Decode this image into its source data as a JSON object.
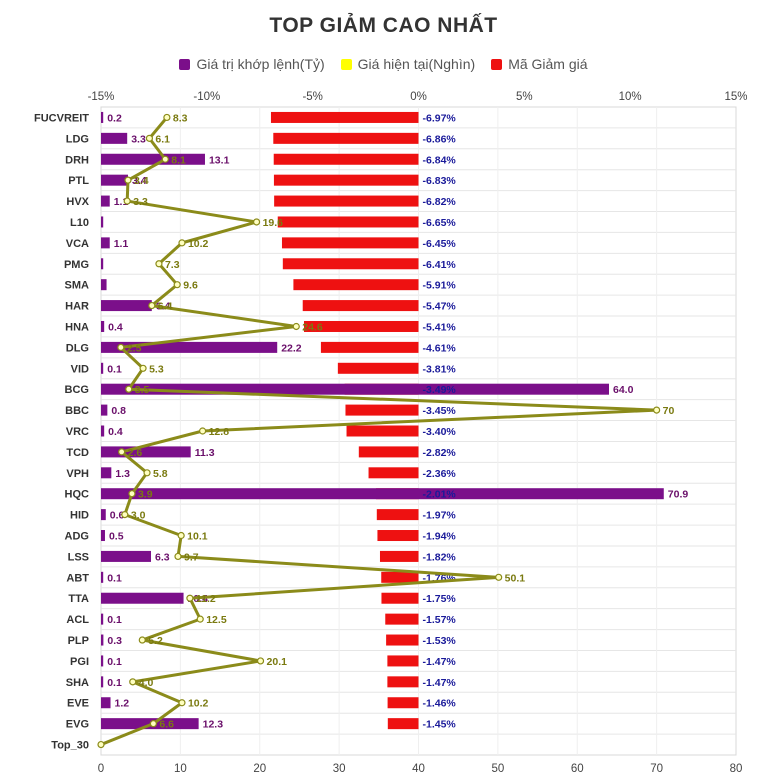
{
  "chart_data": {
    "type": "bar",
    "title": "TOP GIẢM CAO NHẤT",
    "categories": [
      "FUCVREIT",
      "LDG",
      "DRH",
      "PTL",
      "HVX",
      "L10",
      "VCA",
      "PMG",
      "SMA",
      "HAR",
      "HNA",
      "DLG",
      "VID",
      "BCG",
      "BBC",
      "VRC",
      "TCD",
      "VPH",
      "HQC",
      "HID",
      "ADG",
      "LSS",
      "ABT",
      "TTA",
      "ACL",
      "PLP",
      "PGI",
      "SHA",
      "EVE",
      "EVG",
      "Top_30"
    ],
    "series": [
      {
        "name": "Giá trị khớp lệnh(Tỷ)",
        "color": "#7b0f8a",
        "kind": "bar",
        "axis": "bottom",
        "values": [
          0.2,
          3.3,
          13.1,
          3.4,
          1.1,
          0.0,
          1.1,
          0.1,
          0.7,
          6.4,
          0.4,
          22.2,
          0.1,
          64.0,
          0.8,
          0.4,
          11.3,
          1.3,
          70.9,
          0.6,
          0.5,
          6.3,
          0.1,
          10.4,
          0.1,
          0.3,
          0.1,
          0.1,
          1.2,
          12.3,
          null
        ],
        "labels": [
          "0.2",
          "3.3",
          "13.1",
          "3.4",
          "1.1",
          "",
          "1.1",
          "",
          "",
          "6.4",
          "0.4",
          "22.2",
          "0.1",
          "64.0",
          "0.8",
          "0.4",
          "11.3",
          "1.3",
          "70.9",
          "0.6",
          "0.5",
          "6.3",
          "0.1",
          "10.4",
          "0.1",
          "0.3",
          "0.1",
          "0.1",
          "1.2",
          "12.3",
          ""
        ]
      },
      {
        "name": "Giá hiện tại(Nghìn)",
        "color": "#ffff00",
        "line_color": "#8b8b1a",
        "kind": "line",
        "axis": "bottom",
        "values": [
          8.3,
          6.1,
          8.1,
          3.4,
          3.3,
          19.6,
          10.2,
          7.3,
          9.6,
          6.4,
          24.6,
          2.5,
          5.3,
          3.5,
          70,
          12.8,
          2.6,
          5.8,
          3.9,
          3.0,
          10.1,
          9.7,
          50.1,
          11.2,
          12.5,
          5.2,
          20.1,
          4.0,
          10.2,
          6.6,
          0
        ],
        "labels": [
          "8.3",
          "6.1",
          "8.1",
          "3.4",
          "3.3",
          "19.6",
          "10.2",
          "7.3",
          "9.6",
          "6.4",
          "24.6",
          "2.5",
          "5.3",
          "3.5",
          "70",
          "12.8",
          "2.6",
          "5.8",
          "3.9",
          "3.0",
          "10.1",
          "9.7",
          "50.1",
          "11.2",
          "12.5",
          "5.2",
          "20.1",
          "4.0",
          "10.2",
          "6.6",
          ""
        ]
      },
      {
        "name": "Mã Giảm giá",
        "color": "#ee1111",
        "kind": "bar",
        "axis": "top",
        "values": [
          -6.97,
          -6.86,
          -6.84,
          -6.83,
          -6.82,
          -6.65,
          -6.45,
          -6.41,
          -5.91,
          -5.47,
          -5.41,
          -4.61,
          -3.81,
          -3.49,
          -3.45,
          -3.4,
          -2.82,
          -2.36,
          -2.01,
          -1.97,
          -1.94,
          -1.82,
          -1.76,
          -1.75,
          -1.57,
          -1.53,
          -1.47,
          -1.47,
          -1.46,
          -1.45,
          null
        ],
        "labels": [
          "-6.97%",
          "-6.86%",
          "-6.84%",
          "-6.83%",
          "-6.82%",
          "-6.65%",
          "-6.45%",
          "-6.41%",
          "-5.91%",
          "-5.47%",
          "-5.41%",
          "-4.61%",
          "-3.81%",
          "-3.49%",
          "-3.45%",
          "-3.40%",
          "-2.82%",
          "-2.36%",
          "-2.01%",
          "-1.97%",
          "-1.94%",
          "-1.82%",
          "-1.76%",
          "-1.75%",
          "-1.57%",
          "-1.53%",
          "-1.47%",
          "-1.47%",
          "-1.46%",
          "-1.45%",
          ""
        ]
      }
    ],
    "top_axis": {
      "ticks": [
        "-15%",
        "-10%",
        "-5%",
        "0%",
        "5%",
        "10%",
        "15%"
      ],
      "range": [
        -15,
        15
      ]
    },
    "bottom_axis": {
      "ticks": [
        "0",
        "10",
        "20",
        "30",
        "40",
        "50",
        "60",
        "70",
        "80"
      ],
      "range": [
        0,
        80
      ]
    },
    "grid": true,
    "legend_position": "top-center"
  }
}
